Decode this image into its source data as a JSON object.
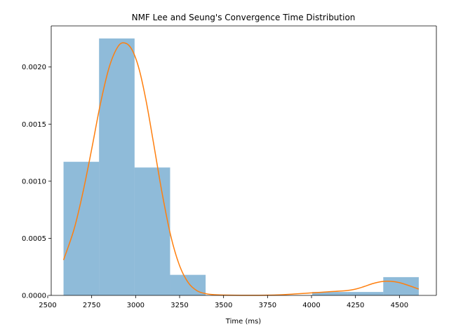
{
  "chart_data": {
    "type": "bar",
    "title": "NMF Lee and Seung's Convergence Time Distribution",
    "xlabel": "Time (ms)",
    "ylabel": "",
    "xlim": [
      2520,
      4710
    ],
    "ylim": [
      0,
      0.00236
    ],
    "grid": false,
    "legend": "none",
    "x_ticks": [
      {
        "value": 2500,
        "label": "2500"
      },
      {
        "value": 2750,
        "label": "2750"
      },
      {
        "value": 3000,
        "label": "3000"
      },
      {
        "value": 3250,
        "label": "3250"
      },
      {
        "value": 3500,
        "label": "3500"
      },
      {
        "value": 3750,
        "label": "3750"
      },
      {
        "value": 4000,
        "label": "4000"
      },
      {
        "value": 4250,
        "label": "4250"
      },
      {
        "value": 4500,
        "label": "4500"
      }
    ],
    "y_ticks": [
      {
        "value": 0.0,
        "label": "0.0000"
      },
      {
        "value": 0.0005,
        "label": "0.0005"
      },
      {
        "value": 0.001,
        "label": "0.0010"
      },
      {
        "value": 0.0015,
        "label": "0.0015"
      },
      {
        "value": 0.002,
        "label": "0.0020"
      }
    ],
    "histogram": {
      "color": "#1f77b4",
      "alpha": 0.5,
      "bins": [
        {
          "x0": 2590,
          "x1": 2792,
          "value": 0.00117
        },
        {
          "x0": 2792,
          "x1": 2994,
          "value": 0.00225
        },
        {
          "x0": 2994,
          "x1": 3196,
          "value": 0.00112
        },
        {
          "x0": 3196,
          "x1": 3398,
          "value": 0.00018
        },
        {
          "x0": 3398,
          "x1": 3600,
          "value": 0.0
        },
        {
          "x0": 3600,
          "x1": 3802,
          "value": 0.0
        },
        {
          "x0": 3802,
          "x1": 4004,
          "value": 0.0
        },
        {
          "x0": 4004,
          "x1": 4206,
          "value": 3e-05
        },
        {
          "x0": 4206,
          "x1": 4408,
          "value": 3e-05
        },
        {
          "x0": 4408,
          "x1": 4610,
          "value": 0.00016
        }
      ]
    },
    "kde": {
      "color": "#ff7f0e",
      "x": [
        2590,
        2650,
        2700,
        2750,
        2800,
        2850,
        2900,
        2940,
        2980,
        3020,
        3060,
        3100,
        3150,
        3200,
        3250,
        3300,
        3350,
        3400,
        3450,
        3500,
        3600,
        3700,
        3800,
        3900,
        4000,
        4100,
        4200,
        4250,
        4300,
        4350,
        4400,
        4450,
        4500,
        4550,
        4610
      ],
      "y": [
        0.00031,
        0.00058,
        0.0009,
        0.00128,
        0.00168,
        0.002,
        0.00218,
        0.00221,
        0.00215,
        0.00198,
        0.0017,
        0.00135,
        0.0009,
        0.00052,
        0.00026,
        0.00011,
        4e-05,
        1.5e-05,
        6e-06,
        3e-06,
        1e-06,
        1e-06,
        4e-06,
        1.2e-05,
        2.2e-05,
        3.2e-05,
        4.2e-05,
        5.5e-05,
        7.8e-05,
        0.000104,
        0.000121,
        0.000123,
        0.000112,
        8.8e-05,
        5.5e-05
      ]
    }
  }
}
